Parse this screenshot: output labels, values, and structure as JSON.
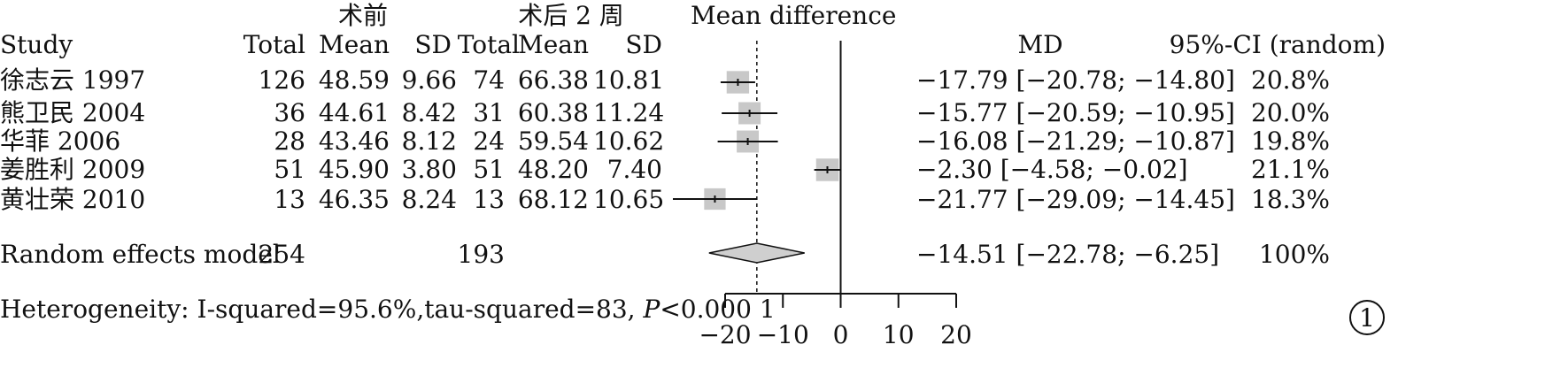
{
  "figure_label": "1",
  "chart_data": {
    "type": "forest",
    "group_headers": [
      "术前",
      "术后 2 周"
    ],
    "plot_header": "Mean difference",
    "columns": [
      "Study",
      "Total",
      "Mean",
      "SD",
      "Total",
      "Mean",
      "SD",
      "MD",
      "95%-CI (random)"
    ],
    "studies": [
      {
        "study": "徐志云 1997",
        "pre_total": "126",
        "pre_mean": "48.59",
        "pre_sd": "9.66",
        "post_total": "74",
        "post_mean": "66.38",
        "post_sd": "10.81",
        "md": -17.79,
        "lo": -20.78,
        "hi": -14.8,
        "ci_text": "−17.79 [−20.78; −14.80]",
        "weight": "20.8%",
        "w": 20.8
      },
      {
        "study": "熊卫民 2004",
        "pre_total": "36",
        "pre_mean": "44.61",
        "pre_sd": "8.42",
        "post_total": "31",
        "post_mean": "60.38",
        "post_sd": "11.24",
        "md": -15.77,
        "lo": -20.59,
        "hi": -10.95,
        "ci_text": "−15.77 [−20.59; −10.95]",
        "weight": "20.0%",
        "w": 20.0
      },
      {
        "study": "华菲 2006",
        "pre_total": "28",
        "pre_mean": "43.46",
        "pre_sd": "8.12",
        "post_total": "24",
        "post_mean": "59.54",
        "post_sd": "10.62",
        "md": -16.08,
        "lo": -21.29,
        "hi": -10.87,
        "ci_text": "−16.08 [−21.29; −10.87]",
        "weight": "19.8%",
        "w": 19.8
      },
      {
        "study": "姜胜利 2009",
        "pre_total": "51",
        "pre_mean": "45.90",
        "pre_sd": "3.80",
        "post_total": "51",
        "post_mean": "48.20",
        "post_sd": "7.40",
        "md": -2.3,
        "lo": -4.58,
        "hi": -0.02,
        "ci_text": "−2.30 [−4.58; −0.02]",
        "weight": "21.1%",
        "w": 21.1
      },
      {
        "study": "黄壮荣 2010",
        "pre_total": "13",
        "pre_mean": "46.35",
        "pre_sd": "8.24",
        "post_total": "13",
        "post_mean": "68.12",
        "post_sd": "10.65",
        "md": -21.77,
        "lo": -29.09,
        "hi": -14.45,
        "ci_text": "−21.77 [−29.09; −14.45]",
        "weight": "18.3%",
        "w": 18.3
      }
    ],
    "summary": {
      "label": "Random effects model",
      "pre_total": "254",
      "post_total": "193",
      "md": -14.51,
      "lo": -22.78,
      "hi": -6.25,
      "ci_text": "−14.51 [−22.78; −6.25]",
      "weight": "100%"
    },
    "heterogeneity": {
      "prefix": "Heterogeneity: I-squared=95.6%,tau-squared=83, ",
      "p_symbol": "P",
      "p_value": "<0.000 1"
    },
    "xlim": [
      -20,
      20
    ],
    "x_ticks": [
      -20,
      -10,
      0,
      10,
      20
    ],
    "x_tick_labels": [
      "−20",
      "−10",
      "0",
      "10",
      "20"
    ],
    "null_line": 0,
    "colors": {
      "box": "#c8c8c8",
      "diamond": "#cfcfcf",
      "line": "#111111"
    }
  }
}
